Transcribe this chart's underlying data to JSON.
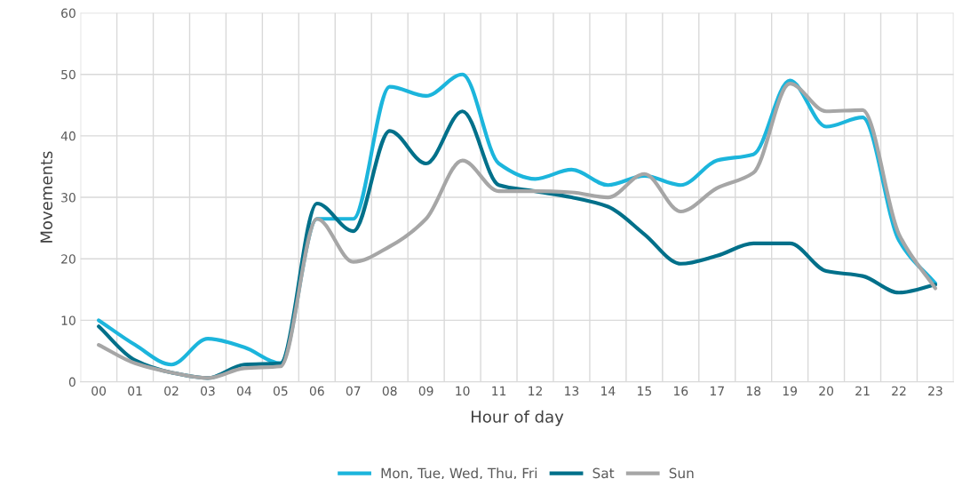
{
  "chart_data": {
    "type": "line",
    "xlabel": "Hour of day",
    "ylabel": "Movements",
    "categories": [
      "00",
      "01",
      "02",
      "03",
      "04",
      "05",
      "06",
      "07",
      "08",
      "09",
      "10",
      "11",
      "12",
      "13",
      "14",
      "15",
      "16",
      "17",
      "18",
      "19",
      "20",
      "21",
      "22",
      "23"
    ],
    "ylim": [
      0,
      60
    ],
    "yticks": [
      0,
      10,
      20,
      30,
      40,
      50,
      60
    ],
    "grid": true,
    "legend": "bottom",
    "marker": "none",
    "line_style": "solid",
    "series": [
      {
        "name": "Mon, Tue, Wed, Thu, Fri",
        "color": "#1cb5dc",
        "values": [
          10,
          6,
          2.8,
          7,
          5.6,
          3,
          26.5,
          26.5,
          48,
          46.5,
          50,
          35.5,
          33,
          34.5,
          32,
          33.5,
          32,
          36,
          37,
          49,
          41.5,
          43,
          23,
          16
        ]
      },
      {
        "name": "Sat",
        "color": "#00708a",
        "values": [
          9,
          3.5,
          1.5,
          0.6,
          2.8,
          3,
          29,
          24.5,
          40.8,
          35.5,
          44,
          32,
          31,
          30,
          28.5,
          24,
          19.2,
          20.5,
          22.5,
          22.5,
          18,
          17.2,
          14.5,
          15.8
        ]
      },
      {
        "name": "Sun",
        "color": "#a6a6a6",
        "values": [
          6,
          3,
          1.5,
          0.6,
          2.2,
          2.5,
          26.5,
          19.5,
          22,
          26.5,
          36,
          31,
          31,
          30.8,
          30,
          33.8,
          27.7,
          31.5,
          34,
          48.5,
          44,
          44.2,
          24,
          15.2
        ]
      }
    ]
  }
}
